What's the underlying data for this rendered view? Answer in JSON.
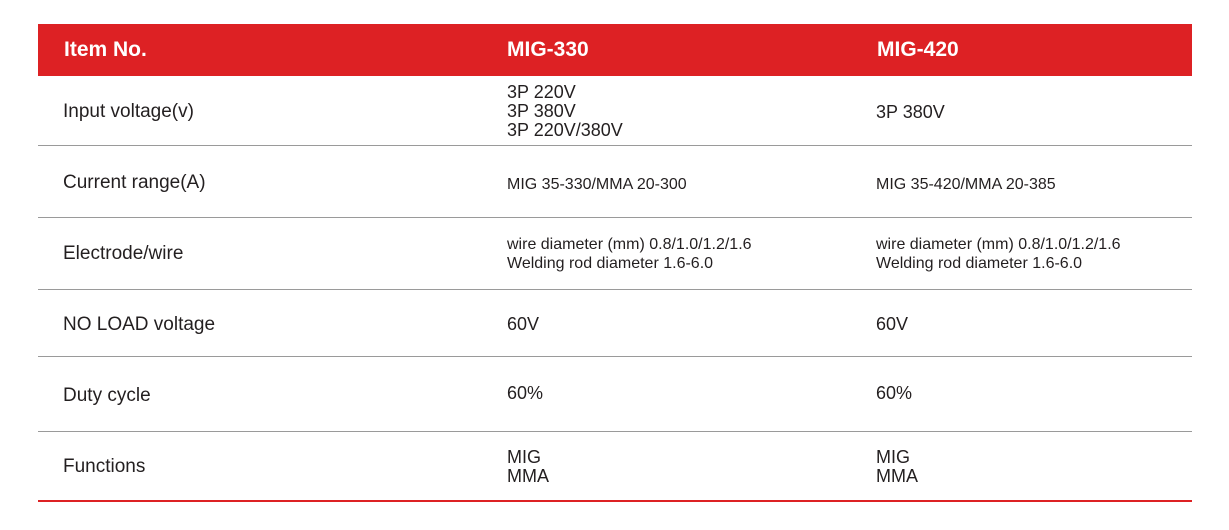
{
  "header": {
    "item_label": "Item No.",
    "model_a": "MIG-330",
    "model_b": "MIG-420"
  },
  "rows": [
    {
      "label": "Input voltage(v)",
      "a": [
        "3P 220V",
        "3P 380V",
        "3P 220V/380V"
      ],
      "b": [
        "3P 380V"
      ]
    },
    {
      "label": "Current range(A)",
      "a": [
        "MIG 35-330/MMA 20-300"
      ],
      "b": [
        "MIG 35-420/MMA 20-385"
      ]
    },
    {
      "label": "Electrode/wire",
      "a": [
        "wire diameter (mm) 0.8/1.0/1.2/1.6",
        "Welding rod diameter 1.6-6.0"
      ],
      "b": [
        "wire diameter (mm) 0.8/1.0/1.2/1.6",
        "Welding rod diameter 1.6-6.0"
      ]
    },
    {
      "label": "NO LOAD voltage",
      "a": [
        "60V"
      ],
      "b": [
        "60V"
      ]
    },
    {
      "label": "Duty cycle",
      "a": [
        "60%"
      ],
      "b": [
        "60%"
      ]
    },
    {
      "label": "Functions",
      "a": [
        "MIG",
        "MMA"
      ],
      "b": [
        "MIG",
        "MMA"
      ]
    }
  ],
  "colors": {
    "accent": "#dd2124",
    "text": "#231f20",
    "divider": "#9a9a9a"
  }
}
